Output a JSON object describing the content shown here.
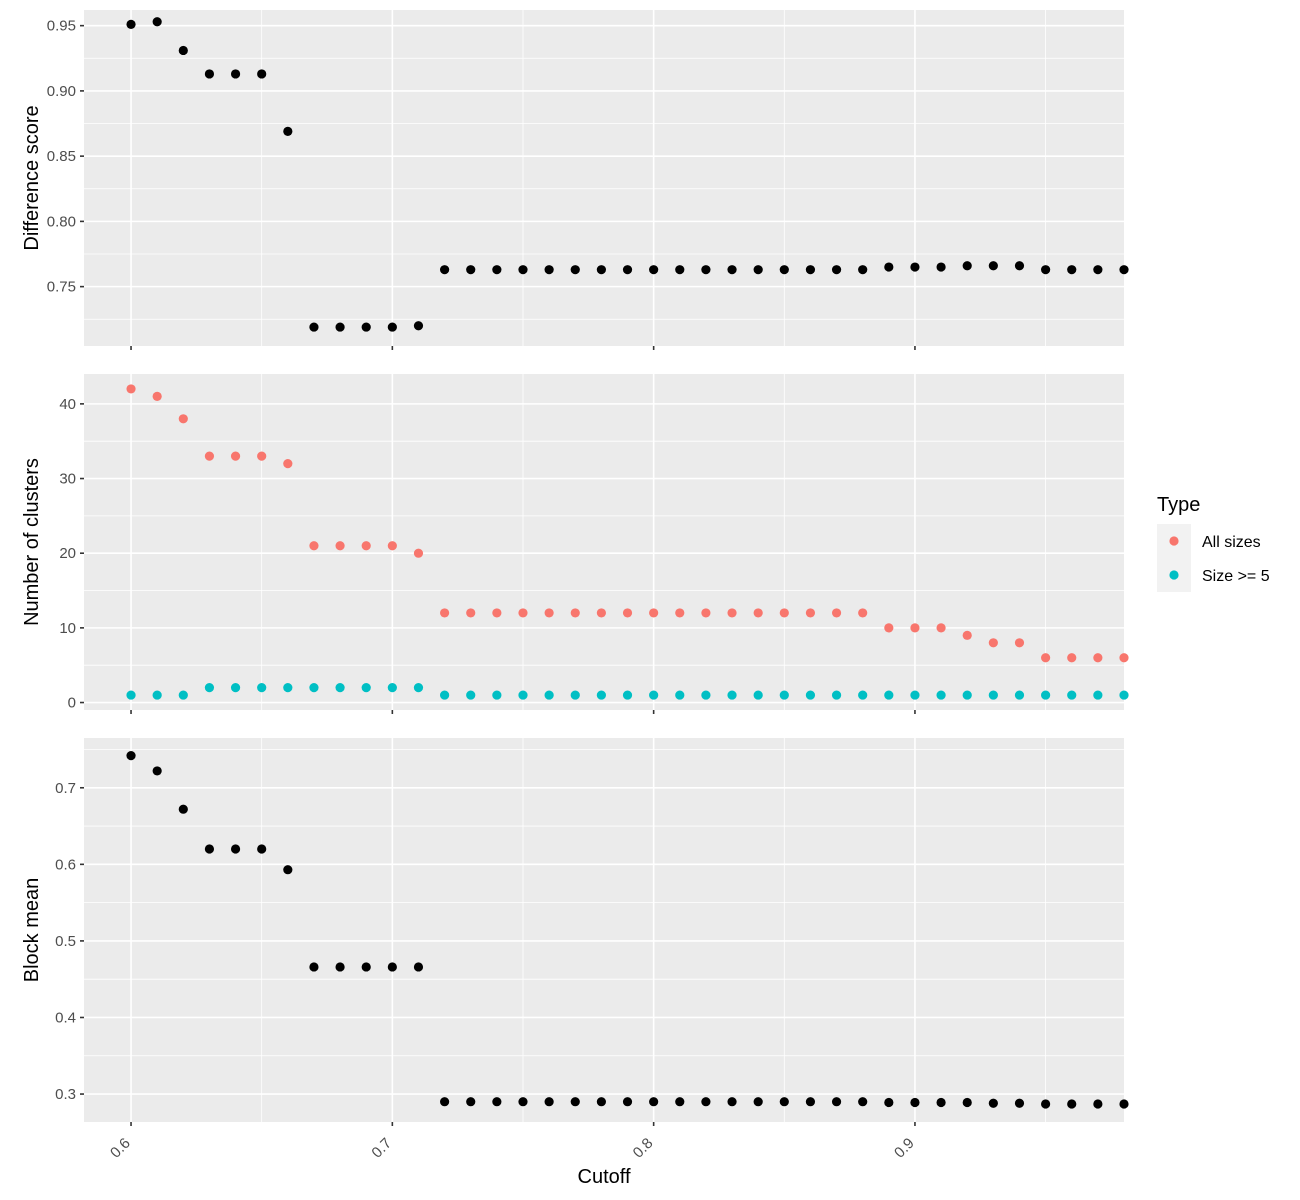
{
  "chart_data": {
    "type": "scatter",
    "xlabel": "Cutoff",
    "x_ticks": [
      "0.6",
      "0.7",
      "0.8",
      "0.9"
    ],
    "x_tick_values": [
      0.6,
      0.7,
      0.8,
      0.9
    ],
    "xlim": [
      0.582,
      0.98
    ],
    "x": [
      0.6,
      0.61,
      0.62,
      0.63,
      0.64,
      0.65,
      0.66,
      0.67,
      0.68,
      0.69,
      0.7,
      0.71,
      0.72,
      0.73,
      0.74,
      0.75,
      0.76,
      0.77,
      0.78,
      0.79,
      0.8,
      0.81,
      0.82,
      0.83,
      0.84,
      0.85,
      0.86,
      0.87,
      0.88,
      0.89,
      0.9,
      0.91,
      0.92,
      0.93,
      0.94,
      0.95,
      0.96,
      0.97,
      0.98
    ],
    "panels": [
      {
        "ylabel": "Difference score",
        "ylim": [
          0.7045,
          0.962
        ],
        "y_ticks": [
          "0.75",
          "0.80",
          "0.85",
          "0.90",
          "0.95"
        ],
        "y_tick_values": [
          0.75,
          0.8,
          0.85,
          0.9,
          0.95
        ],
        "series": [
          {
            "color": "#000000",
            "values": [
              0.951,
              0.953,
              0.931,
              0.913,
              0.913,
              0.913,
              0.869,
              0.719,
              0.719,
              0.719,
              0.719,
              0.72,
              0.763,
              0.763,
              0.763,
              0.763,
              0.763,
              0.763,
              0.763,
              0.763,
              0.763,
              0.763,
              0.763,
              0.763,
              0.763,
              0.763,
              0.763,
              0.763,
              0.763,
              0.765,
              0.765,
              0.765,
              0.766,
              0.766,
              0.766,
              0.763,
              0.763,
              0.763,
              0.763
            ]
          }
        ]
      },
      {
        "ylabel": "Number of clusters",
        "ylim": [
          -1.0,
          44.0
        ],
        "y_ticks": [
          "0",
          "10",
          "20",
          "30",
          "40"
        ],
        "y_tick_values": [
          0,
          10,
          20,
          30,
          40
        ],
        "series": [
          {
            "name": "All sizes",
            "color": "#F8766D",
            "values": [
              42,
              41,
              38,
              33,
              33,
              33,
              32,
              21,
              21,
              21,
              21,
              20,
              12,
              12,
              12,
              12,
              12,
              12,
              12,
              12,
              12,
              12,
              12,
              12,
              12,
              12,
              12,
              12,
              12,
              10,
              10,
              10,
              9,
              8,
              8,
              6,
              6,
              6,
              6
            ]
          },
          {
            "name": "Size >= 5",
            "color": "#00BFC4",
            "values": [
              1,
              1,
              1,
              2,
              2,
              2,
              2,
              2,
              2,
              2,
              2,
              2,
              1,
              1,
              1,
              1,
              1,
              1,
              1,
              1,
              1,
              1,
              1,
              1,
              1,
              1,
              1,
              1,
              1,
              1,
              1,
              1,
              1,
              1,
              1,
              1,
              1,
              1,
              1
            ]
          }
        ]
      },
      {
        "ylabel": "Block mean",
        "ylim": [
          0.2635,
          0.765
        ],
        "y_ticks": [
          "0.3",
          "0.4",
          "0.5",
          "0.6",
          "0.7"
        ],
        "y_tick_values": [
          0.3,
          0.4,
          0.5,
          0.6,
          0.7
        ],
        "series": [
          {
            "color": "#000000",
            "values": [
              0.742,
              0.722,
              0.672,
              0.62,
              0.62,
              0.62,
              0.593,
              0.466,
              0.466,
              0.466,
              0.466,
              0.466,
              0.29,
              0.29,
              0.29,
              0.29,
              0.29,
              0.29,
              0.29,
              0.29,
              0.29,
              0.29,
              0.29,
              0.29,
              0.29,
              0.29,
              0.29,
              0.29,
              0.29,
              0.289,
              0.289,
              0.289,
              0.289,
              0.288,
              0.288,
              0.287,
              0.287,
              0.287,
              0.287
            ]
          }
        ]
      }
    ],
    "legend": {
      "title": "Type",
      "position": "right",
      "items": [
        {
          "label": "All sizes",
          "color": "#F8766D"
        },
        {
          "label": "Size >= 5",
          "color": "#00BFC4"
        }
      ]
    },
    "grid": true
  }
}
